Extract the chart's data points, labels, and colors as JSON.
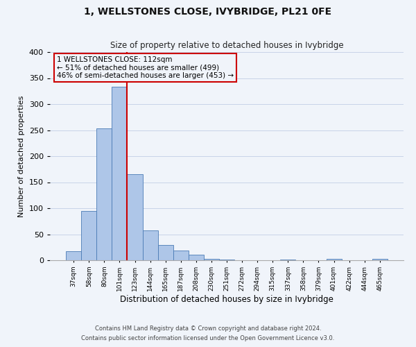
{
  "title": "1, WELLSTONES CLOSE, IVYBRIDGE, PL21 0FE",
  "subtitle": "Size of property relative to detached houses in Ivybridge",
  "xlabel": "Distribution of detached houses by size in Ivybridge",
  "ylabel": "Number of detached properties",
  "bin_labels": [
    "37sqm",
    "58sqm",
    "80sqm",
    "101sqm",
    "123sqm",
    "144sqm",
    "165sqm",
    "187sqm",
    "208sqm",
    "230sqm",
    "251sqm",
    "272sqm",
    "294sqm",
    "315sqm",
    "337sqm",
    "358sqm",
    "379sqm",
    "401sqm",
    "422sqm",
    "444sqm",
    "465sqm"
  ],
  "bar_heights": [
    18,
    95,
    253,
    333,
    165,
    57,
    30,
    19,
    11,
    3,
    1,
    0,
    0,
    0,
    1,
    0,
    0,
    3,
    0,
    0,
    3
  ],
  "bar_color": "#aec6e8",
  "bar_edge_color": "#4a7ab5",
  "highlight_line_color": "#cc0000",
  "annotation_line1": "1 WELLSTONES CLOSE: 112sqm",
  "annotation_line2": "← 51% of detached houses are smaller (499)",
  "annotation_line3": "46% of semi-detached houses are larger (453) →",
  "annotation_box_edge_color": "#cc0000",
  "ylim": [
    0,
    400
  ],
  "yticks": [
    0,
    50,
    100,
    150,
    200,
    250,
    300,
    350,
    400
  ],
  "footnote1": "Contains HM Land Registry data © Crown copyright and database right 2024.",
  "footnote2": "Contains public sector information licensed under the Open Government Licence v3.0.",
  "bg_color": "#f0f4fa",
  "grid_color": "#c8d4e8"
}
